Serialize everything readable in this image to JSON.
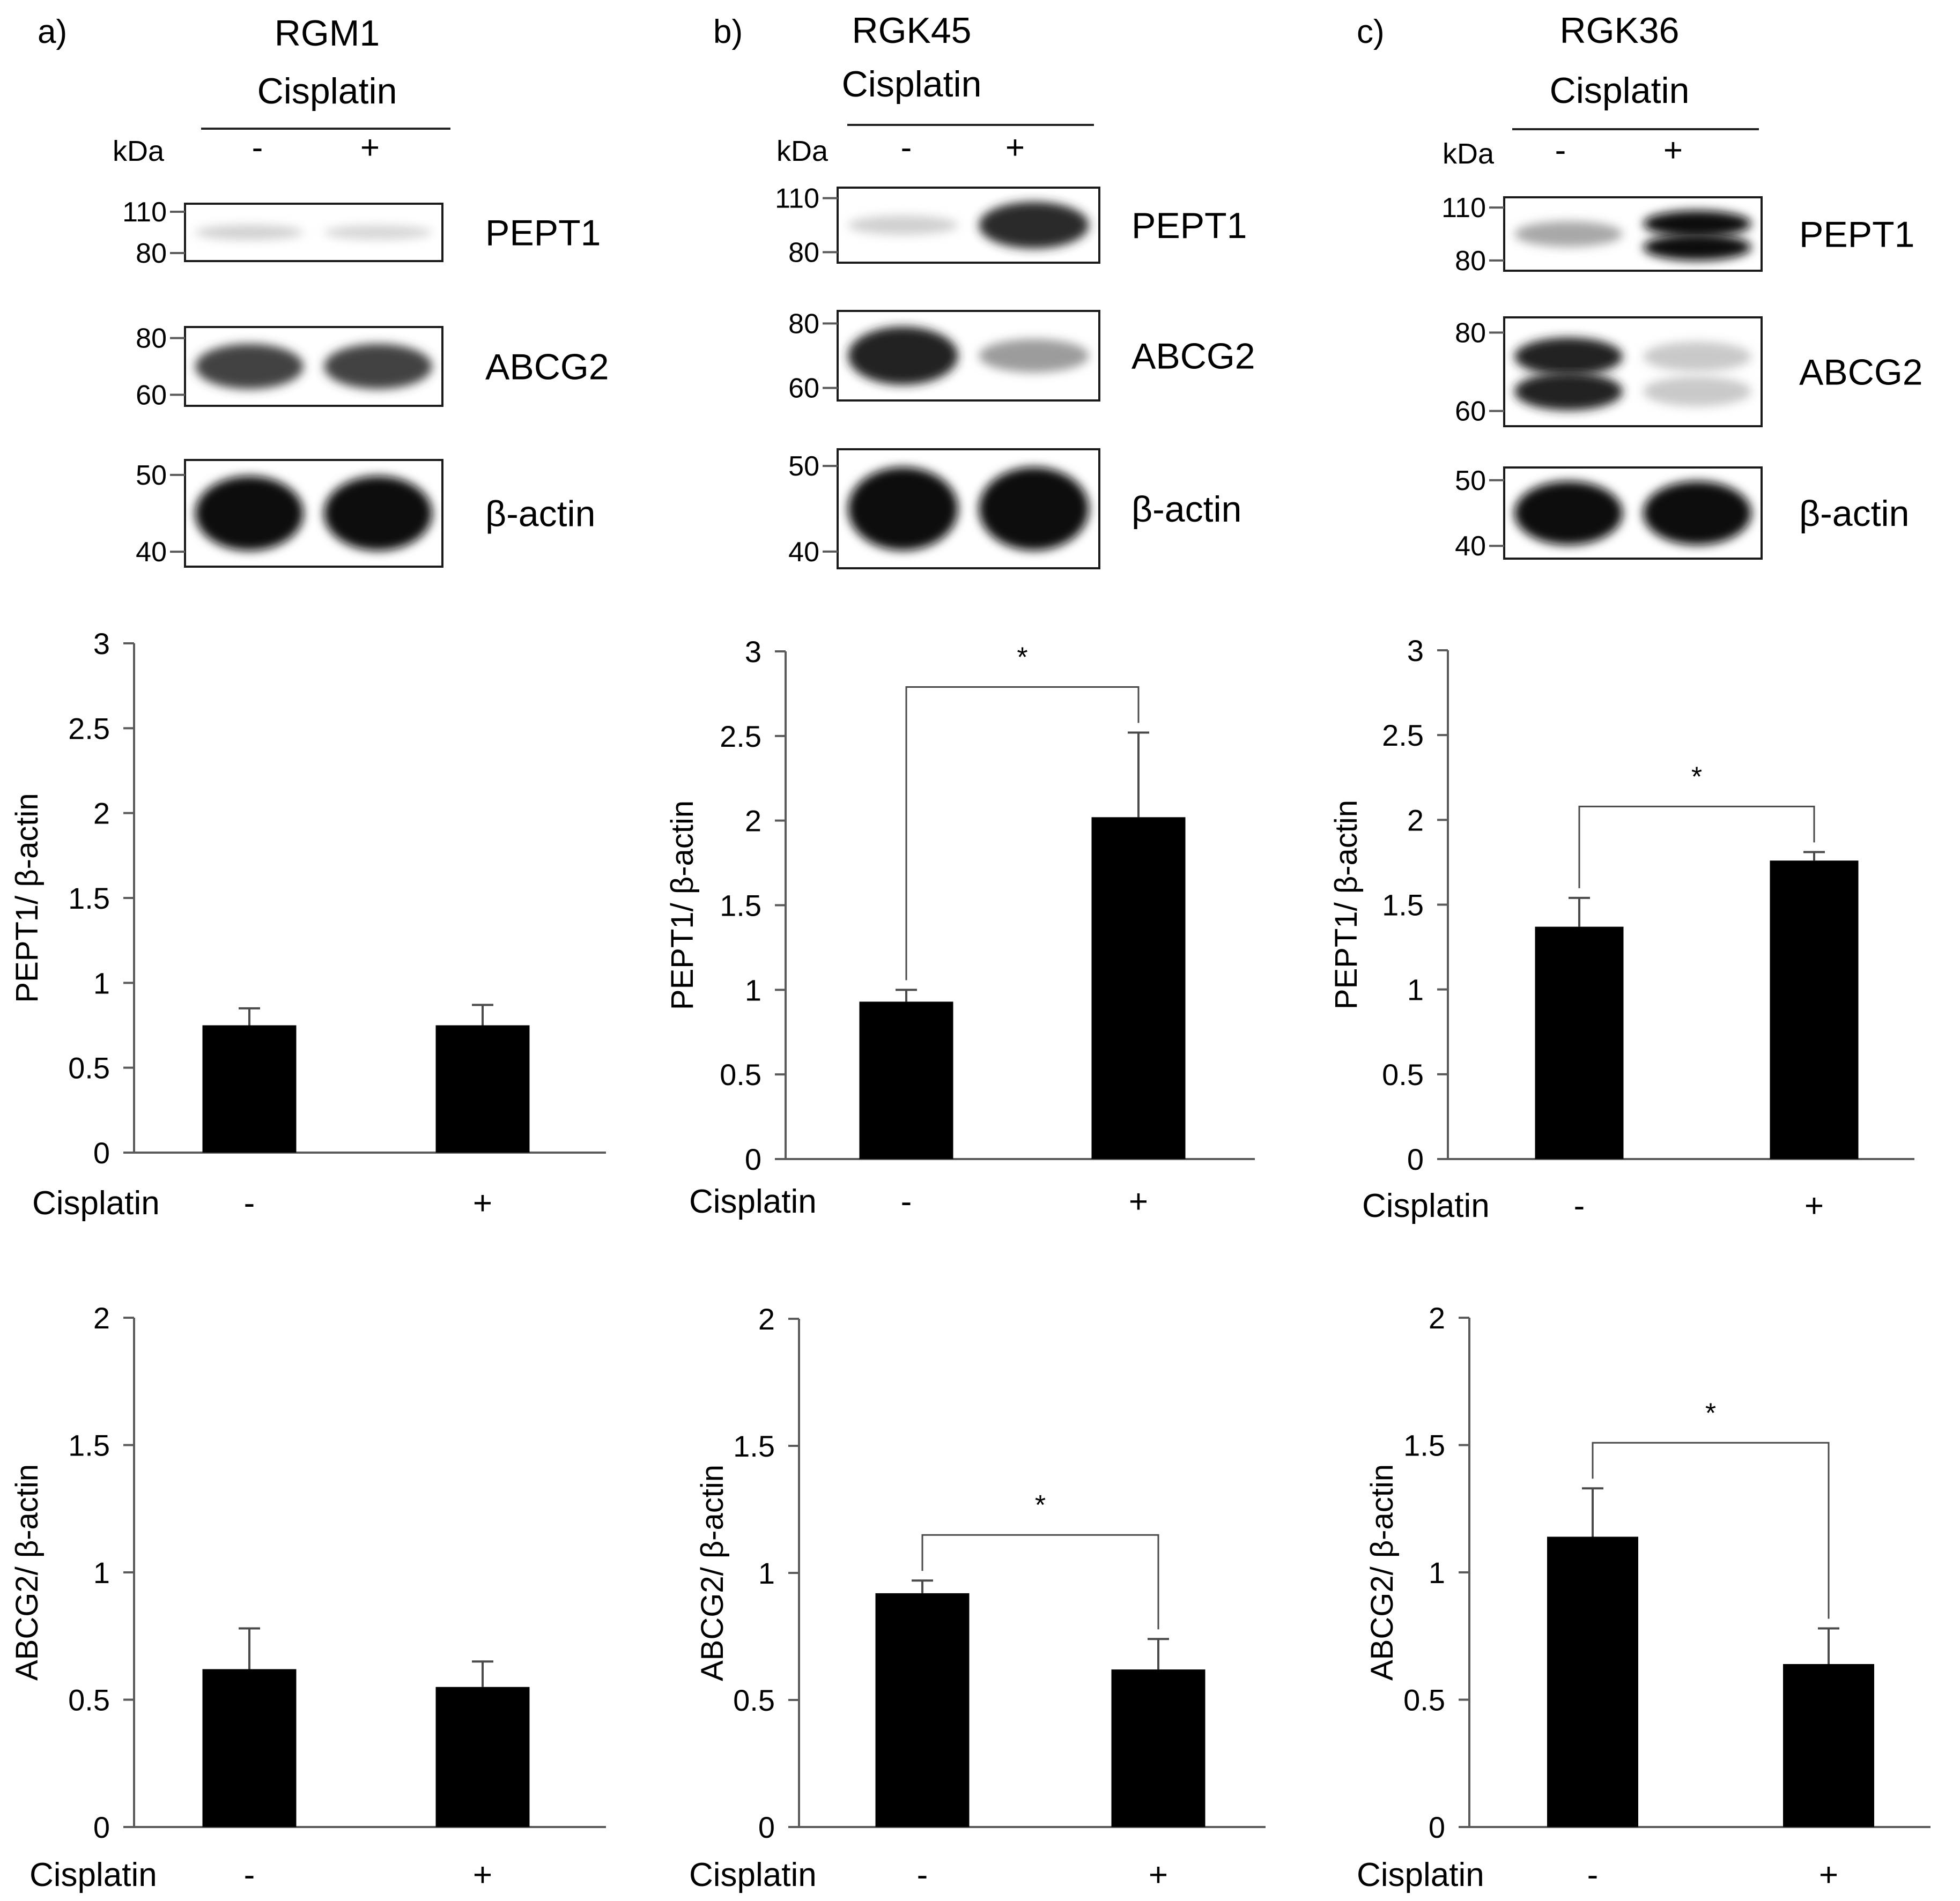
{
  "panels": [
    {
      "letter": "a)",
      "cell_line": "RGM1",
      "treatment": "Cisplatin",
      "kda_label": "kDa",
      "lane_labels": [
        "-",
        "+"
      ],
      "blots": [
        {
          "protein": "PEPT1",
          "markers": [
            "110",
            "80"
          ],
          "bands": [
            {
              "intensity": 0.12,
              "doublet": false
            },
            {
              "intensity": 0.1,
              "doublet": false
            }
          ]
        },
        {
          "protein": "ABCG2",
          "markers": [
            "80",
            "60"
          ],
          "bands": [
            {
              "intensity": 0.75,
              "doublet": false
            },
            {
              "intensity": 0.75,
              "doublet": false
            }
          ]
        },
        {
          "protein": "β-actin",
          "markers": [
            "50",
            "40"
          ],
          "bands": [
            {
              "intensity": 1.0,
              "doublet": false
            },
            {
              "intensity": 1.0,
              "doublet": false
            }
          ]
        }
      ]
    },
    {
      "letter": "b)",
      "cell_line": "RGK45",
      "treatment": "Cisplatin",
      "kda_label": "kDa",
      "lane_labels": [
        "-",
        "+"
      ],
      "blots": [
        {
          "protein": "PEPT1",
          "markers": [
            "110",
            "80"
          ],
          "bands": [
            {
              "intensity": 0.12,
              "doublet": false
            },
            {
              "intensity": 0.85,
              "doublet": false
            }
          ]
        },
        {
          "protein": "ABCG2",
          "markers": [
            "80",
            "60"
          ],
          "bands": [
            {
              "intensity": 0.9,
              "doublet": false
            },
            {
              "intensity": 0.35,
              "doublet": false
            }
          ]
        },
        {
          "protein": "β-actin",
          "markers": [
            "50",
            "40"
          ],
          "bands": [
            {
              "intensity": 1.0,
              "doublet": false
            },
            {
              "intensity": 1.0,
              "doublet": false
            }
          ]
        }
      ]
    },
    {
      "letter": "c)",
      "cell_line": "RGK36",
      "treatment": "Cisplatin",
      "kda_label": "kDa",
      "lane_labels": [
        "-",
        "+"
      ],
      "blots": [
        {
          "protein": "PEPT1",
          "markers": [
            "110",
            "80"
          ],
          "bands": [
            {
              "intensity": 0.3,
              "doublet": false
            },
            {
              "intensity": 1.0,
              "doublet": true
            }
          ]
        },
        {
          "protein": "ABCG2",
          "markers": [
            "80",
            "60"
          ],
          "bands": [
            {
              "intensity": 0.9,
              "doublet": true
            },
            {
              "intensity": 0.15,
              "doublet": true
            }
          ]
        },
        {
          "protein": "β-actin",
          "markers": [
            "50",
            "40"
          ],
          "bands": [
            {
              "intensity": 1.0,
              "doublet": false
            },
            {
              "intensity": 1.0,
              "doublet": false
            }
          ]
        }
      ]
    }
  ],
  "chart_data": [
    {
      "id": "a-pept1",
      "type": "bar",
      "panel": "a)",
      "title": "",
      "xlabel": "Cisplatin",
      "ylabel": "PEPT1/ β-actin",
      "categories": [
        "-",
        "+"
      ],
      "values": [
        0.75,
        0.75
      ],
      "errors": [
        0.1,
        0.12
      ],
      "ylim": [
        0,
        3
      ],
      "yticks": [
        "0",
        "0.5",
        "1",
        "1.5",
        "2",
        "2.5",
        "3"
      ],
      "significance": null
    },
    {
      "id": "b-pept1",
      "type": "bar",
      "panel": "b)",
      "title": "",
      "xlabel": "Cisplatin",
      "ylabel": "PEPT1/ β-actin",
      "categories": [
        "-",
        "+"
      ],
      "values": [
        0.93,
        2.02
      ],
      "errors": [
        0.07,
        0.5
      ],
      "ylim": [
        0,
        3
      ],
      "yticks": [
        "0",
        "0.5",
        "1",
        "1.5",
        "2",
        "2.5",
        "3"
      ],
      "significance": "*"
    },
    {
      "id": "c-pept1",
      "type": "bar",
      "panel": "c)",
      "title": "",
      "xlabel": "Cisplatin",
      "ylabel": "PEPT1/ β-actin",
      "categories": [
        "-",
        "+"
      ],
      "values": [
        1.37,
        1.76
      ],
      "errors": [
        0.17,
        0.05
      ],
      "ylim": [
        0,
        3
      ],
      "yticks": [
        "0",
        "0.5",
        "1",
        "1.5",
        "2",
        "2.5",
        "3"
      ],
      "significance": "*"
    },
    {
      "id": "a-abcg2",
      "type": "bar",
      "panel": "a)",
      "title": "",
      "xlabel": "Cisplatin",
      "ylabel": "ABCG2/ β-actin",
      "categories": [
        "-",
        "+"
      ],
      "values": [
        0.62,
        0.55
      ],
      "errors": [
        0.16,
        0.1
      ],
      "ylim": [
        0,
        2
      ],
      "yticks": [
        "0",
        "0.5",
        "1",
        "1.5",
        "2"
      ],
      "significance": null
    },
    {
      "id": "b-abcg2",
      "type": "bar",
      "panel": "b)",
      "title": "",
      "xlabel": "Cisplatin",
      "ylabel": "ABCG2/ β-actin",
      "categories": [
        "-",
        "+"
      ],
      "values": [
        0.92,
        0.62
      ],
      "errors": [
        0.05,
        0.12
      ],
      "ylim": [
        0,
        2
      ],
      "yticks": [
        "0",
        "0.5",
        "1",
        "1.5",
        "2"
      ],
      "significance": "*"
    },
    {
      "id": "c-abcg2",
      "type": "bar",
      "panel": "c)",
      "title": "",
      "xlabel": "Cisplatin",
      "ylabel": "ABCG2/ β-actin",
      "categories": [
        "-",
        "+"
      ],
      "values": [
        1.14,
        0.64
      ],
      "errors": [
        0.19,
        0.14
      ],
      "ylim": [
        0,
        2
      ],
      "yticks": [
        "0",
        "0.5",
        "1",
        "1.5",
        "2"
      ],
      "significance": "*"
    }
  ]
}
